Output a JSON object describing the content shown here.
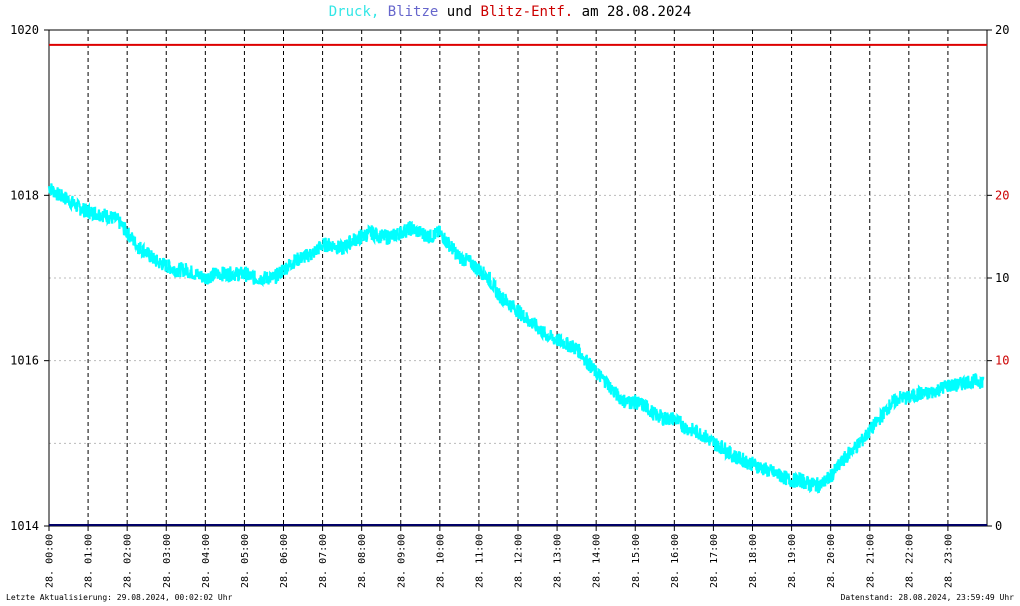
{
  "title": {
    "part1": "Druck,",
    "part2": "Blitze",
    "part3": "und",
    "part4": "Blitz-Entf.",
    "part5": "am 28.08.2024",
    "colors": {
      "part1": "#33e6e6",
      "part2": "#6666cc",
      "part3": "#000000",
      "part4": "#cc0000",
      "part5": "#000000"
    }
  },
  "footer": {
    "left": "Letzte Aktualisierung: 29.08.2024, 00:02:02 Uhr",
    "right": "Datenstand: 28.08.2024, 23:59:49 Uhr"
  },
  "chart_data": {
    "type": "line",
    "title": "Druck, Blitze und Blitz-Entf. am 28.08.2024",
    "x_tick_labels": [
      "28. 00:00",
      "28. 01:00",
      "28. 02:00",
      "28. 03:00",
      "28. 04:00",
      "28. 05:00",
      "28. 06:00",
      "28. 07:00",
      "28. 08:00",
      "28. 09:00",
      "28. 10:00",
      "28. 11:00",
      "28. 12:00",
      "28. 13:00",
      "28. 14:00",
      "28. 15:00",
      "28. 16:00",
      "28. 17:00",
      "28. 18:00",
      "28. 19:00",
      "28. 20:00",
      "28. 21:00",
      "28. 22:00",
      "28. 23:00"
    ],
    "x_range_hours": [
      0,
      24
    ],
    "y_left": {
      "range": [
        1014,
        1020
      ],
      "ticks": [
        1014,
        1016,
        1018,
        1020
      ]
    },
    "y_right_black": {
      "ticks": [
        "0",
        "10",
        "20"
      ]
    },
    "y_right_red": {
      "ticks": [
        "10",
        "20"
      ]
    },
    "grid": true,
    "grid_style": "vertical dashed at each hour, dotted horizontal",
    "colors": {
      "pressure": "#00ffff",
      "distance": "#dd0000",
      "lightning": "#000066",
      "grid": "#000000",
      "hgrid": "#bbbbbb"
    },
    "series": [
      {
        "key": "pressure",
        "x": [
          0.0,
          0.25,
          0.5,
          0.75,
          1.0,
          1.25,
          1.5,
          1.75,
          2.0,
          2.25,
          2.5,
          2.75,
          3.0,
          3.25,
          3.5,
          3.75,
          4.0,
          4.25,
          4.5,
          4.75,
          5.0,
          5.25,
          5.5,
          5.75,
          6.0,
          6.25,
          6.5,
          6.75,
          7.0,
          7.25,
          7.5,
          7.75,
          8.0,
          8.25,
          8.5,
          8.75,
          9.0,
          9.25,
          9.5,
          9.75,
          10.0,
          10.25,
          10.5,
          10.75,
          11.0,
          11.25,
          11.5,
          11.75,
          12.0,
          12.25,
          12.5,
          12.75,
          13.0,
          13.25,
          13.5,
          13.75,
          14.0,
          14.25,
          14.5,
          14.75,
          15.0,
          15.25,
          15.5,
          15.75,
          16.0,
          16.25,
          16.5,
          16.75,
          17.0,
          17.25,
          17.5,
          17.75,
          18.0,
          18.25,
          18.5,
          18.75,
          19.0,
          19.25,
          19.5,
          19.75,
          20.0,
          20.25,
          20.5,
          20.75,
          21.0,
          21.25,
          21.5,
          21.75,
          22.0,
          22.25,
          22.5,
          22.75,
          23.0,
          23.25,
          23.5,
          23.75,
          23.9
        ],
        "y": [
          1018.1,
          1018.0,
          1017.95,
          1017.85,
          1017.8,
          1017.78,
          1017.75,
          1017.7,
          1017.55,
          1017.4,
          1017.3,
          1017.2,
          1017.15,
          1017.1,
          1017.1,
          1017.05,
          1017.0,
          1017.05,
          1017.05,
          1017.05,
          1017.05,
          1017.0,
          1017.0,
          1017.0,
          1017.1,
          1017.2,
          1017.25,
          1017.3,
          1017.4,
          1017.4,
          1017.35,
          1017.45,
          1017.5,
          1017.55,
          1017.5,
          1017.5,
          1017.55,
          1017.6,
          1017.55,
          1017.5,
          1017.55,
          1017.4,
          1017.25,
          1017.2,
          1017.1,
          1017.0,
          1016.8,
          1016.7,
          1016.6,
          1016.5,
          1016.4,
          1016.3,
          1016.25,
          1016.2,
          1016.15,
          1016.0,
          1015.85,
          1015.75,
          1015.6,
          1015.5,
          1015.5,
          1015.45,
          1015.35,
          1015.3,
          1015.3,
          1015.2,
          1015.15,
          1015.1,
          1015.0,
          1014.95,
          1014.85,
          1014.8,
          1014.75,
          1014.7,
          1014.65,
          1014.6,
          1014.55,
          1014.55,
          1014.5,
          1014.5,
          1014.6,
          1014.75,
          1014.9,
          1015.0,
          1015.15,
          1015.3,
          1015.45,
          1015.55,
          1015.55,
          1015.6,
          1015.6,
          1015.65,
          1015.7,
          1015.7,
          1015.75,
          1015.75,
          1015.75
        ]
      },
      {
        "key": "distance",
        "constant": 19.4,
        "scale": "right"
      },
      {
        "key": "lightning",
        "constant": 0,
        "scale": "right"
      }
    ]
  }
}
